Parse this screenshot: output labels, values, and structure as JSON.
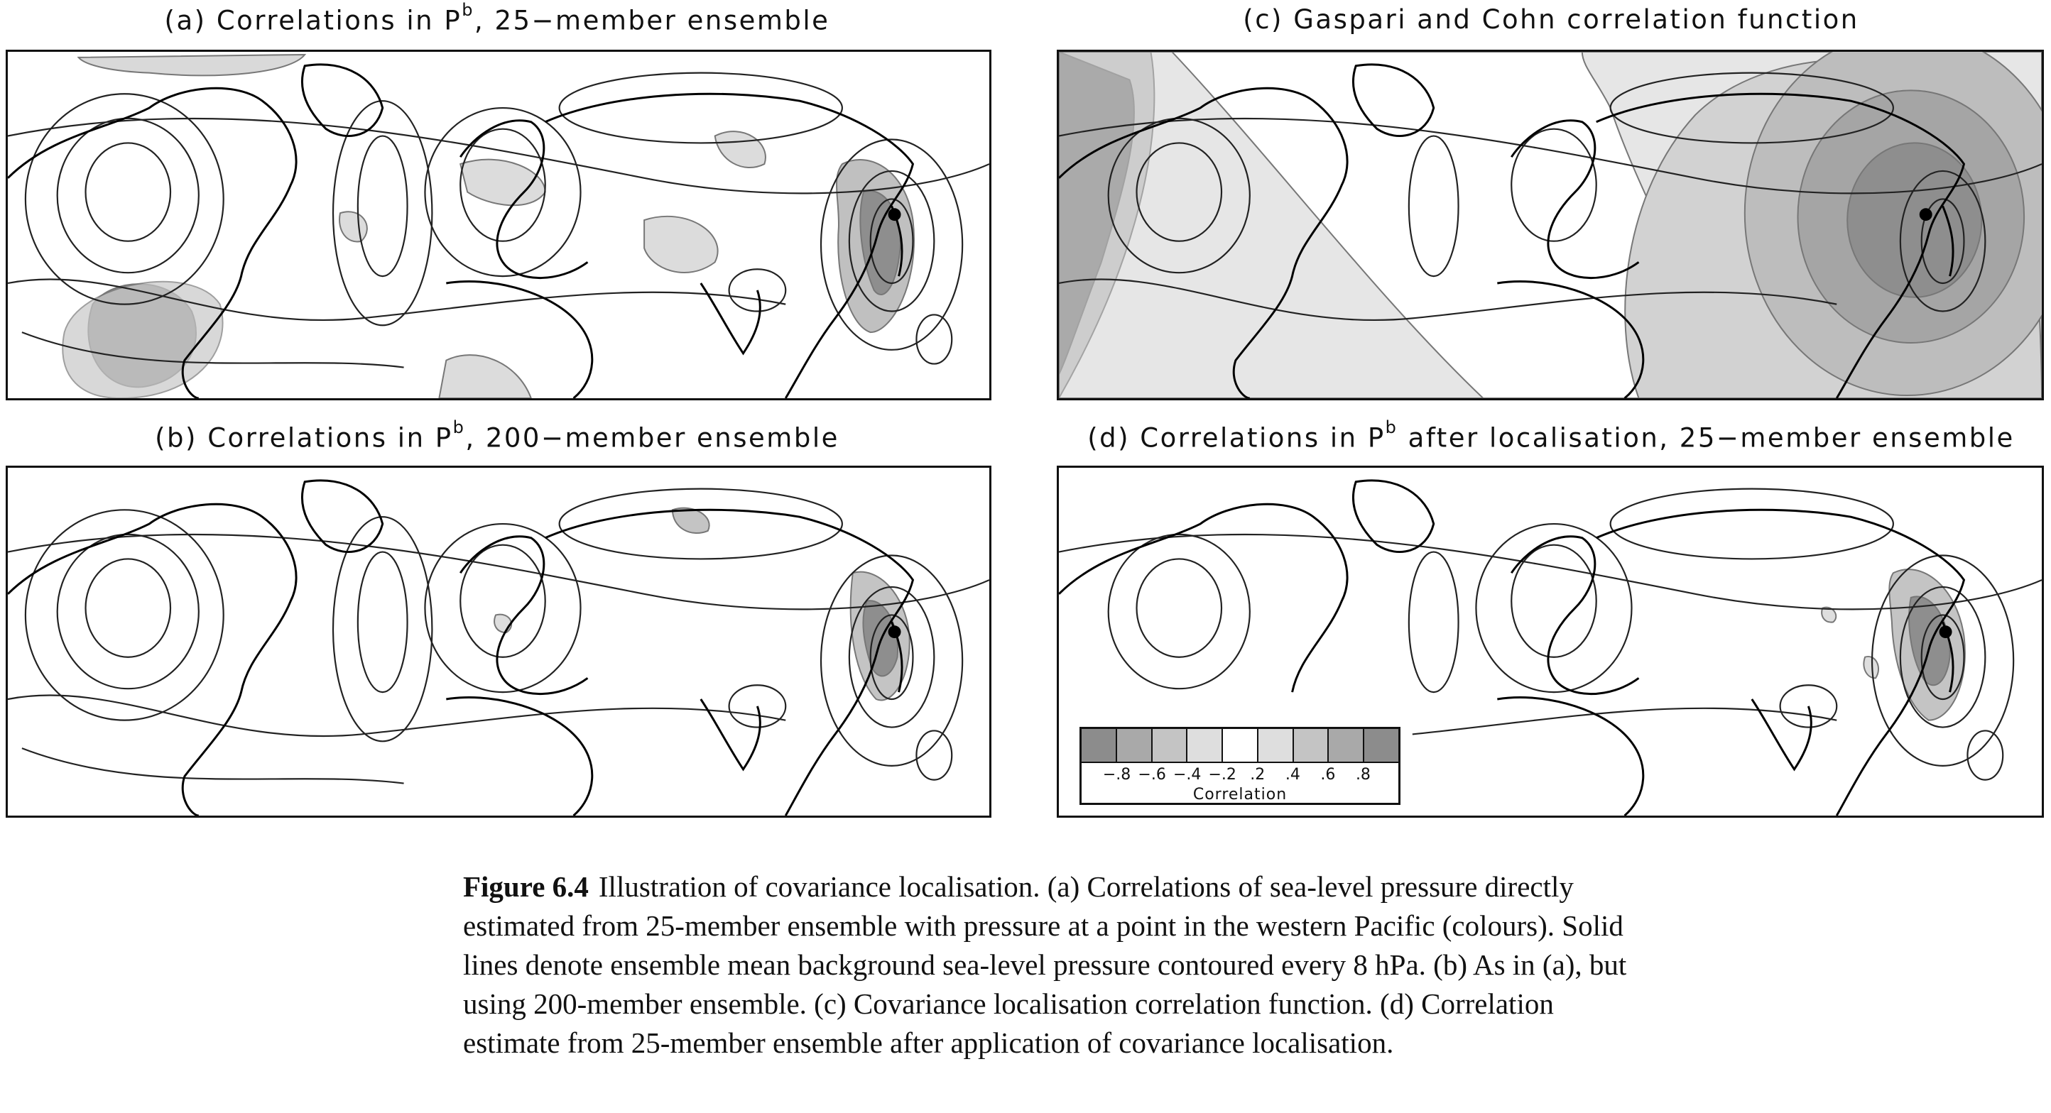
{
  "panels": {
    "a": {
      "title": "(a) Correlations in P",
      "sup": "b",
      "title_rest": ", 25−member ensemble"
    },
    "b": {
      "title": "(b) Correlations in P",
      "sup": "b",
      "title_rest": ", 200−member ensemble"
    },
    "c": {
      "title": "(c) Gaspari and Cohn correlation function"
    },
    "d": {
      "title": "(d) Correlations in P",
      "sup": "b",
      "title_rest": " after localisation, 25−member ensemble"
    }
  },
  "legend": {
    "ticks": [
      "−.8",
      "−.6",
      "−.4",
      "−.2",
      ".2",
      ".4",
      ".6",
      ".8"
    ],
    "title": "Correlation",
    "colors": [
      "#8c8c8c",
      "#a9a9a9",
      "#c4c4c4",
      "#dedede",
      "#ffffff",
      "#dedede",
      "#c4c4c4",
      "#a9a9a9",
      "#8c8c8c"
    ]
  },
  "caption": {
    "lead": "Figure 6.4",
    "text": "Illustration of covariance localisation. (a) Correlations of sea-level pressure directly estimated from 25-member ensemble with pressure at a point in the western Pacific (colours). Solid lines denote ensemble mean background sea-level pressure contoured every 8 hPa. (b) As in (a), but using 200-member ensemble. (c) Covariance localisation correlation function. (d) Correlation estimate from 25-member ensemble after application of covariance localisation."
  }
}
